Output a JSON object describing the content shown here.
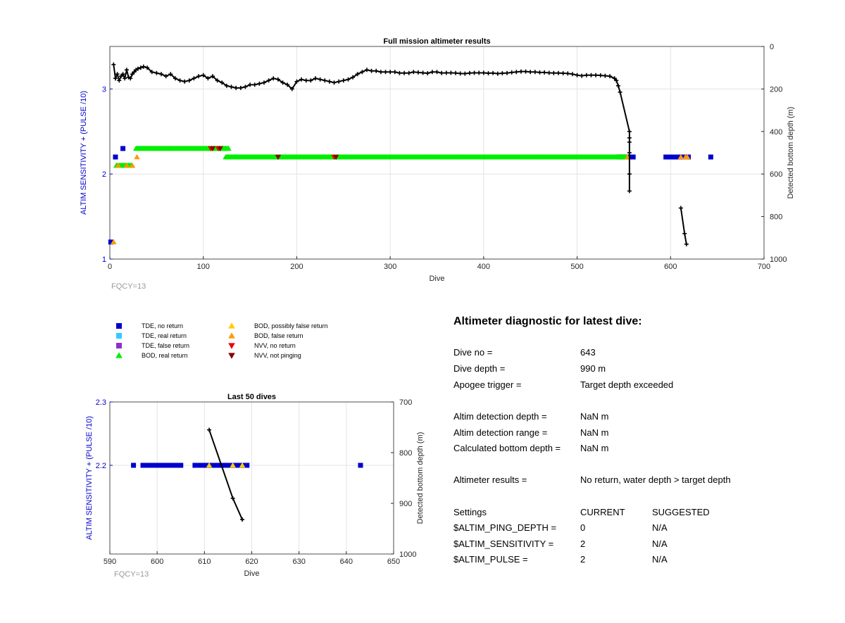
{
  "colors": {
    "tde_no_return": "#0000cc",
    "tde_real_return": "#33ccff",
    "tde_false_return": "#8833cc",
    "bod_real_return": "#00ee00",
    "bod_possibly_false": "#ffcc00",
    "bod_false_return": "#ff9900",
    "nvv_no_return": "#ee0000",
    "nvv_not_pinging": "#880000",
    "left_axis": "#0000cc",
    "fqcy_text": "#999999"
  },
  "legend": [
    {
      "label": "TDE, no return",
      "marker": "square",
      "color_key": "tde_no_return"
    },
    {
      "label": "TDE, real return",
      "marker": "square",
      "color_key": "tde_real_return"
    },
    {
      "label": "TDE, false return",
      "marker": "square",
      "color_key": "tde_false_return"
    },
    {
      "label": "BOD, real return",
      "marker": "triangle-up",
      "color_key": "bod_real_return"
    },
    {
      "label": "BOD, possibly false return",
      "marker": "triangle-up",
      "color_key": "bod_possibly_false"
    },
    {
      "label": "BOD, false return",
      "marker": "triangle-up",
      "color_key": "bod_false_return"
    },
    {
      "label": "NVV, no return",
      "marker": "triangle-down",
      "color_key": "nvv_no_return"
    },
    {
      "label": "NVV, not pinging",
      "marker": "triangle-down",
      "color_key": "nvv_not_pinging"
    }
  ],
  "chart_data": [
    {
      "id": "full-mission",
      "type": "scatter",
      "title": "Full mission altimeter results",
      "xlabel": "Dive",
      "ylabel": "ALTIM SENSITIVITY + (PULSE /10)",
      "y2label": "Detected bottom depth (m)",
      "annotation": "FQCY=13",
      "xlim": [
        0,
        700
      ],
      "ylim": [
        1,
        3.5
      ],
      "y2lim": [
        0,
        1000
      ],
      "y2_reversed": true,
      "xticks": [
        0,
        100,
        200,
        300,
        400,
        500,
        600,
        700
      ],
      "yticks": [
        1,
        2,
        3
      ],
      "y2ticks": [
        0,
        200,
        400,
        600,
        800,
        1000
      ],
      "grid": true,
      "series": [
        {
          "name": "TDE, no return",
          "axis": "left",
          "marker": "square",
          "color_key": "tde_no_return",
          "x": [
            1,
            6,
            14,
            545,
            548,
            552,
            556,
            560,
            595,
            600,
            605,
            610,
            615,
            619,
            643
          ],
          "y": [
            1.2,
            2.2,
            2.3,
            2.2,
            2.2,
            2.2,
            2.2,
            2.2,
            2.2,
            2.2,
            2.2,
            2.2,
            2.2,
            2.2,
            2.2
          ]
        },
        {
          "name": "BOD, real return",
          "axis": "left",
          "marker": "triangle-up",
          "color_key": "bod_real_return",
          "x_ranges": [
            [
              7,
              24,
              2.1
            ],
            [
              28,
              127,
              2.3
            ],
            [
              124,
              553,
              2.2
            ]
          ]
        },
        {
          "name": "BOD, false return",
          "axis": "left",
          "marker": "triangle-up",
          "color_key": "bod_false_return",
          "x": [
            4,
            9,
            18,
            24,
            29,
            554,
            611,
            616,
            618
          ],
          "y": [
            1.2,
            2.1,
            2.1,
            2.1,
            2.2,
            2.2,
            2.2,
            2.2,
            2.2
          ]
        },
        {
          "name": "NVV, no return",
          "axis": "left",
          "marker": "triangle-down",
          "color_key": "nvv_no_return",
          "x": [
            108,
            116,
            240
          ],
          "y": [
            2.3,
            2.3,
            2.2
          ]
        },
        {
          "name": "NVV, not pinging",
          "axis": "left",
          "marker": "triangle-down",
          "color_key": "nvv_not_pinging",
          "x": [
            110,
            118,
            180,
            242
          ],
          "y": [
            2.3,
            2.3,
            2.2,
            2.2
          ]
        },
        {
          "name": "Detected bottom depth",
          "axis": "right",
          "marker": "plus",
          "color_key": "bottom",
          "x": [
            4,
            6,
            8,
            10,
            12,
            14,
            16,
            18,
            20,
            22,
            24,
            26,
            28,
            30,
            33,
            36,
            40,
            45,
            50,
            55,
            60,
            65,
            70,
            75,
            80,
            85,
            90,
            95,
            100,
            105,
            110,
            115,
            120,
            125,
            130,
            135,
            140,
            145,
            150,
            155,
            160,
            165,
            170,
            175,
            180,
            185,
            190,
            195,
            200,
            205,
            210,
            215,
            220,
            225,
            230,
            235,
            240,
            245,
            250,
            255,
            260,
            265,
            270,
            275,
            280,
            285,
            290,
            295,
            300,
            305,
            310,
            315,
            320,
            325,
            330,
            335,
            340,
            345,
            350,
            355,
            360,
            365,
            370,
            375,
            380,
            385,
            390,
            395,
            400,
            405,
            410,
            415,
            420,
            425,
            430,
            435,
            440,
            445,
            450,
            455,
            460,
            465,
            470,
            475,
            480,
            485,
            490,
            495,
            500,
            505,
            510,
            515,
            520,
            525,
            530,
            535,
            540,
            542,
            544,
            546,
            556,
            556,
            556,
            556,
            556,
            556,
            611,
            615,
            617
          ],
          "y": [
            85,
            150,
            130,
            160,
            140,
            130,
            150,
            110,
            145,
            150,
            130,
            120,
            110,
            105,
            100,
            95,
            100,
            120,
            125,
            130,
            140,
            130,
            150,
            160,
            165,
            160,
            150,
            140,
            135,
            150,
            140,
            160,
            170,
            185,
            190,
            195,
            195,
            190,
            180,
            180,
            175,
            170,
            160,
            150,
            155,
            170,
            180,
            200,
            165,
            155,
            160,
            160,
            150,
            155,
            160,
            165,
            170,
            165,
            160,
            155,
            145,
            130,
            120,
            110,
            115,
            115,
            120,
            120,
            120,
            120,
            125,
            125,
            125,
            120,
            122,
            124,
            126,
            120,
            120,
            125,
            124,
            124,
            125,
            127,
            128,
            125,
            124,
            124,
            124,
            126,
            125,
            128,
            126,
            125,
            122,
            120,
            118,
            118,
            120,
            120,
            122,
            122,
            124,
            125,
            125,
            126,
            127,
            130,
            135,
            138,
            135,
            135,
            135,
            136,
            138,
            140,
            150,
            160,
            185,
            215,
            400,
            430,
            450,
            500,
            600,
            680,
            760,
            880,
            930
          ]
        }
      ]
    },
    {
      "id": "last-50",
      "type": "scatter",
      "title": "Last 50 dives",
      "xlabel": "Dive",
      "ylabel": "ALTIM SENSITIVITY + (PULSE /10)",
      "y2label": "Detected bottom depth (m)",
      "annotation": "FQCY=13",
      "xlim": [
        590,
        650
      ],
      "ylim": [
        2.06,
        2.3
      ],
      "y2lim": [
        700,
        1000
      ],
      "y2_reversed": true,
      "xticks": [
        590,
        600,
        610,
        620,
        630,
        640,
        650
      ],
      "yticks": [
        2.2,
        2.3
      ],
      "y2ticks": [
        700,
        800,
        900,
        1000
      ],
      "grid": true,
      "series": [
        {
          "name": "TDE, no return",
          "axis": "left",
          "marker": "square",
          "color_key": "tde_no_return",
          "x": [
            595,
            597,
            598,
            599,
            600,
            601,
            602,
            603,
            604,
            605,
            608,
            609,
            610,
            611,
            612,
            613,
            614,
            615,
            616,
            617,
            618,
            619,
            643
          ],
          "y": [
            2.2,
            2.2,
            2.2,
            2.2,
            2.2,
            2.2,
            2.2,
            2.2,
            2.2,
            2.2,
            2.2,
            2.2,
            2.2,
            2.2,
            2.2,
            2.2,
            2.2,
            2.2,
            2.2,
            2.2,
            2.2,
            2.2,
            2.2
          ]
        },
        {
          "name": "BOD, possibly false return",
          "axis": "left",
          "marker": "triangle-up",
          "color_key": "bod_possibly_false",
          "x": [
            611,
            616,
            618
          ],
          "y": [
            2.2,
            2.2,
            2.2
          ]
        },
        {
          "name": "Detected bottom depth",
          "axis": "right",
          "marker": "plus",
          "color_key": "bottom",
          "x": [
            611,
            616,
            618
          ],
          "y": [
            755,
            890,
            932
          ]
        }
      ]
    }
  ],
  "diagnostic": {
    "title": "Altimeter diagnostic for latest dive:",
    "rows": [
      {
        "label": "Dive no =",
        "value": "643"
      },
      {
        "label": "Dive depth =",
        "value": "990 m"
      },
      {
        "label": "Apogee trigger =",
        "value": "Target depth exceeded"
      },
      {
        "label": "Altim detection depth =",
        "value": "NaN m"
      },
      {
        "label": "Altim detection range =",
        "value": "NaN m"
      },
      {
        "label": "Calculated bottom depth =",
        "value": "NaN m"
      },
      {
        "label": "Altimeter results =",
        "value": "No return, water depth > target depth"
      }
    ],
    "settings_header": {
      "label": "Settings",
      "current": "CURRENT",
      "suggested": "SUGGESTED"
    },
    "settings": [
      {
        "label": "$ALTIM_PING_DEPTH =",
        "current": "0",
        "suggested": "N/A"
      },
      {
        "label": "$ALTIM_SENSITIVITY =",
        "current": "2",
        "suggested": "N/A"
      },
      {
        "label": "$ALTIM_PULSE =",
        "current": "2",
        "suggested": "N/A"
      }
    ]
  }
}
